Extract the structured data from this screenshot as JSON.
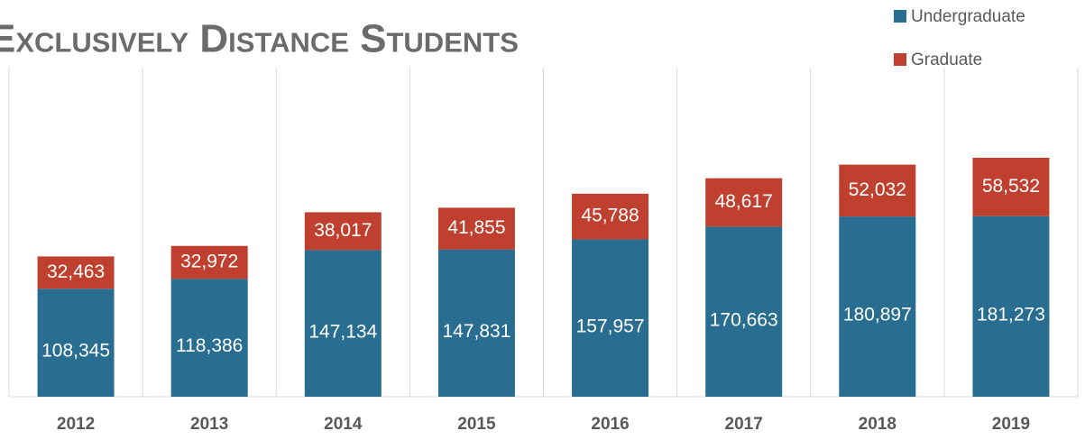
{
  "chart_data": {
    "type": "stacked_bar",
    "title": "Exclusively Distance Students",
    "categories": [
      "2012",
      "2013",
      "2014",
      "2015",
      "2016",
      "2017",
      "2018",
      "2019"
    ],
    "series": [
      {
        "name": "Undergraduate",
        "color": "#296e91",
        "values": [
          108345,
          118386,
          147134,
          147831,
          157957,
          170663,
          180897,
          181273
        ],
        "value_labels": [
          "108,345",
          "118,386",
          "147,134",
          "147,831",
          "157,957",
          "170,663",
          "180,897",
          "181,273"
        ]
      },
      {
        "name": "Graduate",
        "color": "#c0402f",
        "values": [
          32463,
          32972,
          38017,
          41855,
          45788,
          48617,
          52032,
          58532
        ],
        "value_labels": [
          "32,463",
          "32,972",
          "38,017",
          "41,855",
          "45,788",
          "48,617",
          "52,032",
          "58,532"
        ]
      }
    ]
  }
}
